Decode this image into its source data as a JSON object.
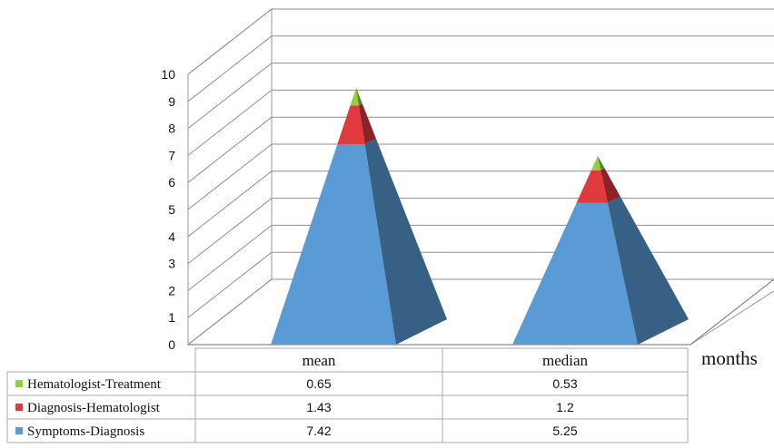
{
  "chart_data": {
    "type": "bar",
    "style": "3d-stacked-pyramid",
    "categories": [
      "mean",
      "median"
    ],
    "series": [
      {
        "name": "Symptoms-Diagnosis",
        "values": [
          7.42,
          5.25
        ],
        "color": "#5b9bd5"
      },
      {
        "name": "Diagnosis-Hematologist",
        "values": [
          1.43,
          1.2
        ],
        "color": "#e0393e"
      },
      {
        "name": "Hematologist-Treatment",
        "values": [
          0.65,
          0.53
        ],
        "color": "#8fd13f"
      }
    ],
    "ylim": [
      0,
      10
    ],
    "yticks": [
      "0",
      "1",
      "2",
      "3",
      "4",
      "5",
      "6",
      "7",
      "8",
      "9",
      "10"
    ],
    "unit_label": "months",
    "grid": true,
    "legend_placement": "data-table-below",
    "data_table": {
      "rows": [
        {
          "series": "Hematologist-Treatment",
          "values": [
            "0.65",
            "0.53"
          ],
          "color": "#8fd13f"
        },
        {
          "series": "Diagnosis-Hematologist",
          "values": [
            "1.43",
            "1.2"
          ],
          "color": "#e0393e"
        },
        {
          "series": "Symptoms-Diagnosis",
          "values": [
            "7.42",
            "5.25"
          ],
          "color": "#5b9bd5"
        }
      ]
    }
  }
}
